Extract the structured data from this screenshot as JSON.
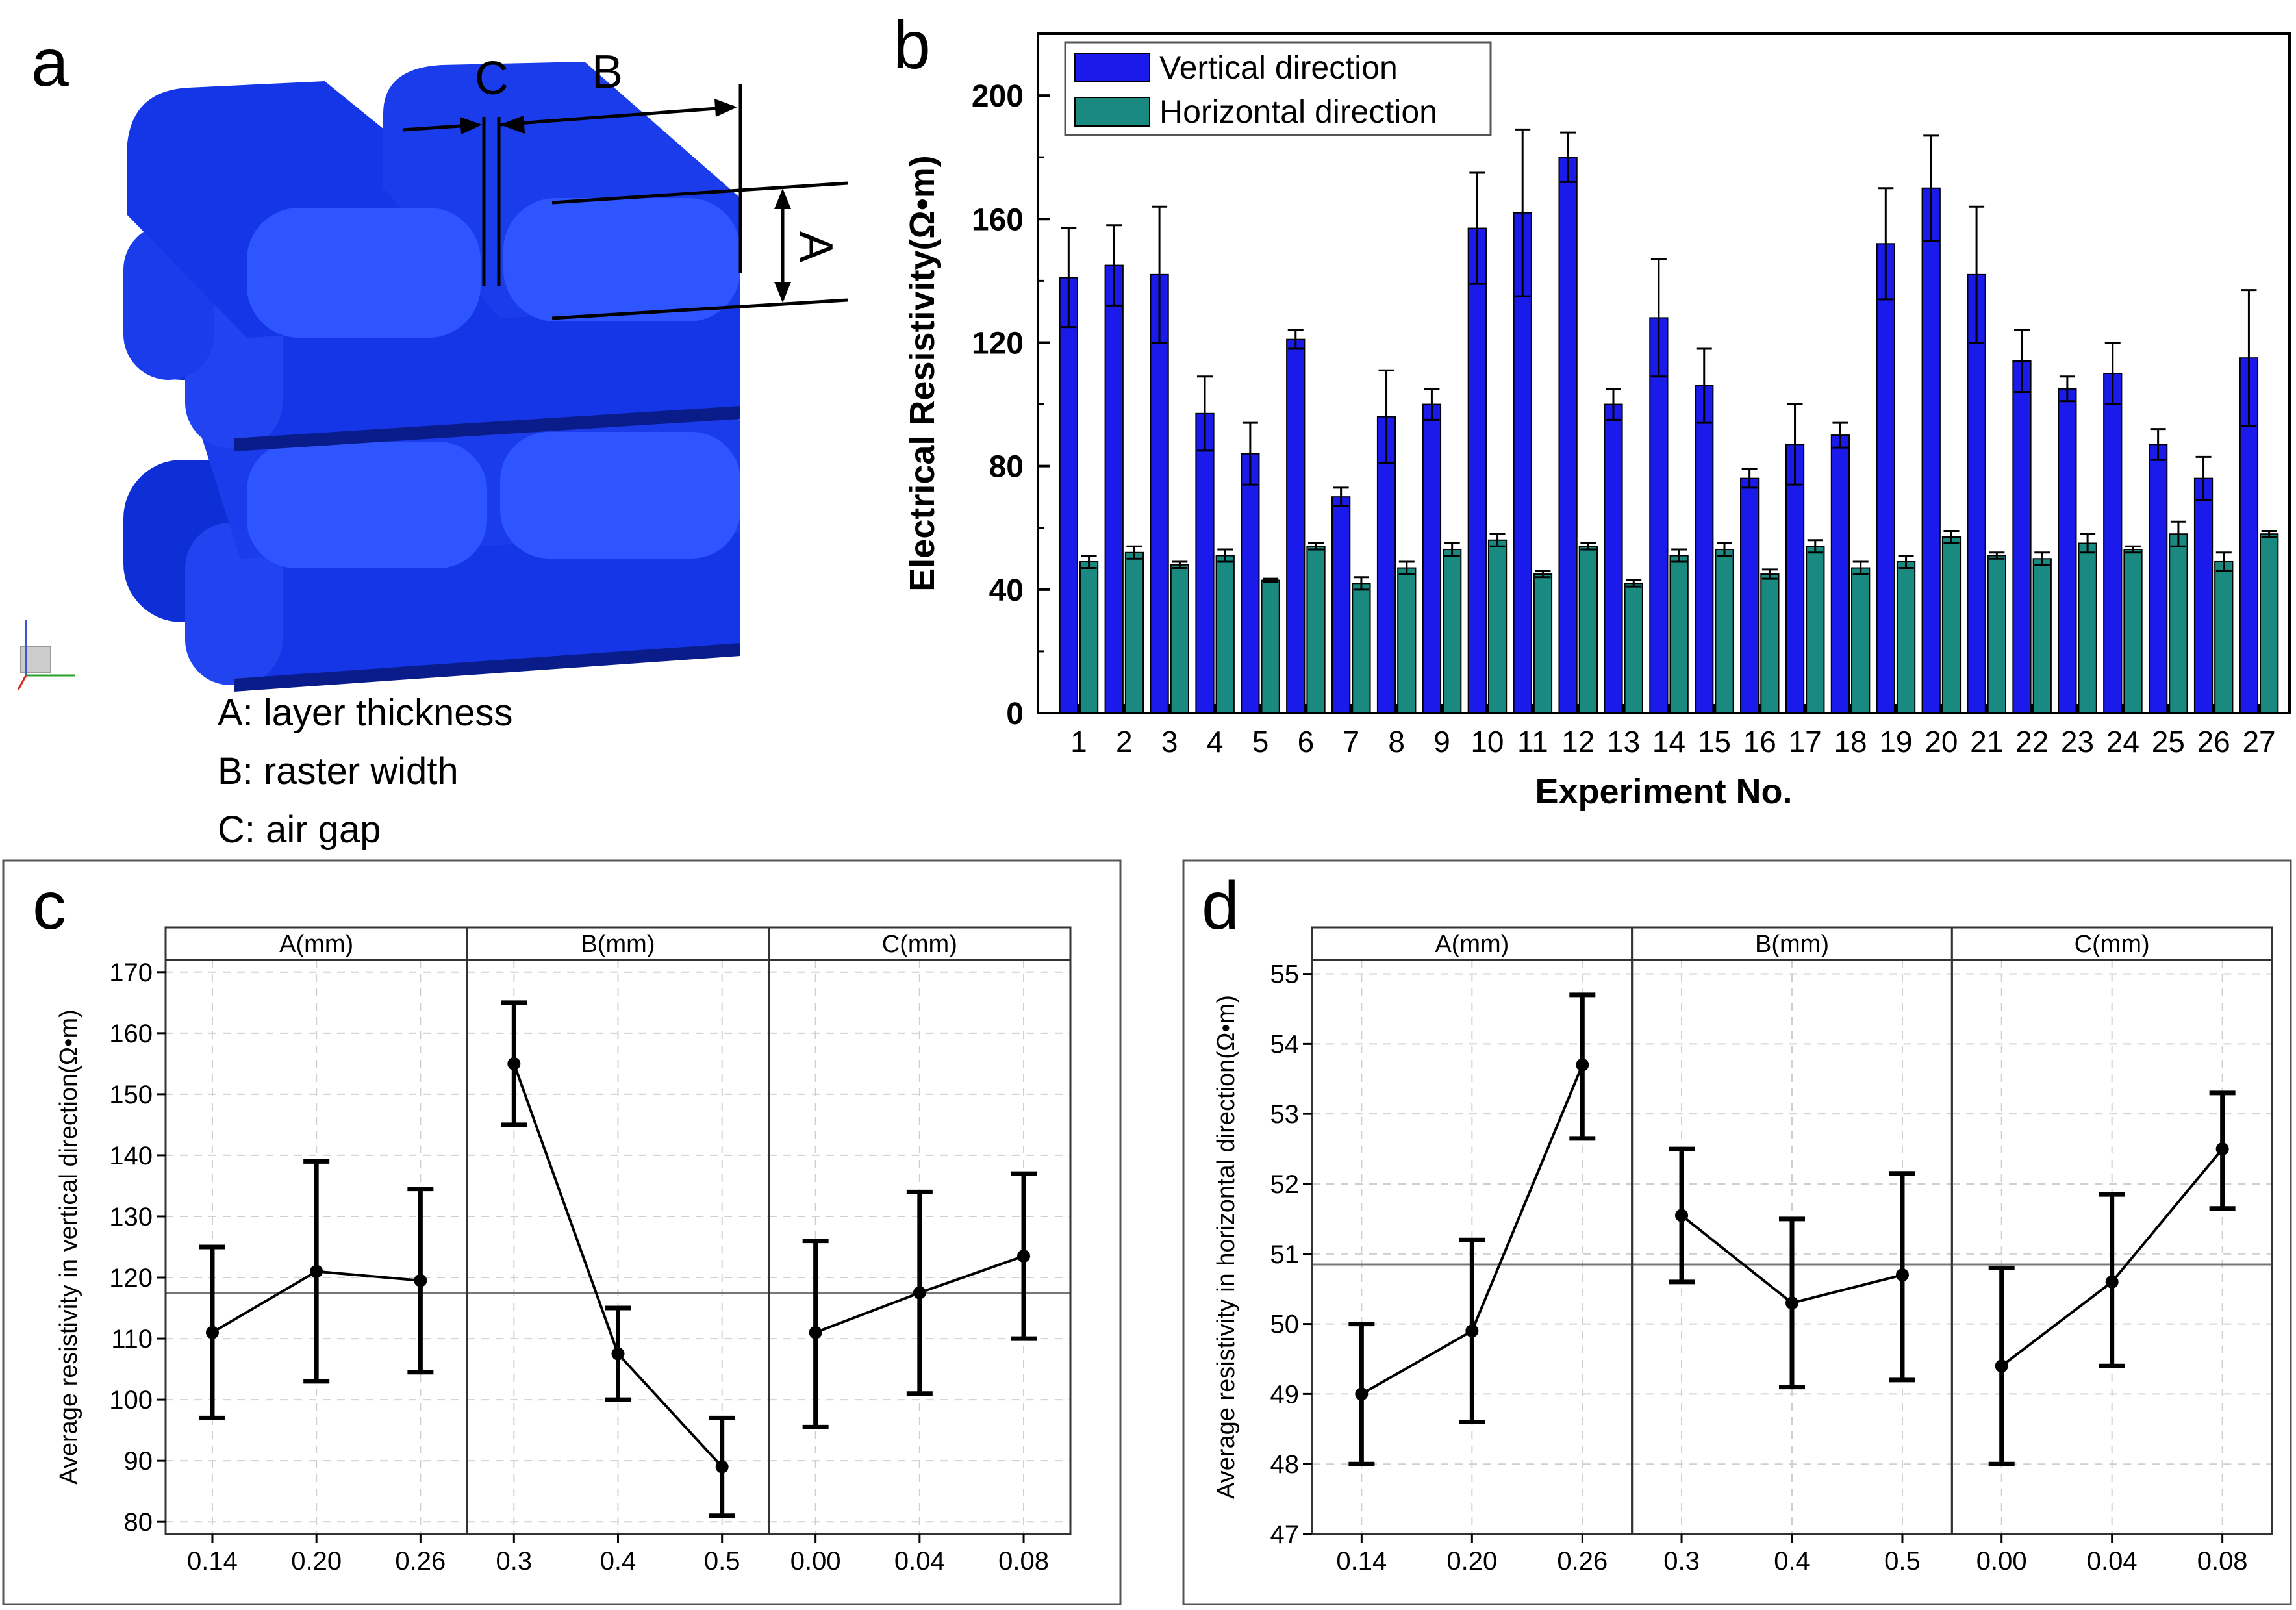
{
  "panel_a": {
    "panel_label": "a",
    "dim_labels": [
      "A",
      "B",
      "C"
    ],
    "legend": [
      "A: layer thickness",
      "B: raster width",
      "C: air gap"
    ],
    "colors": {
      "body": "#1436e6",
      "face": "#2e55ff",
      "top": "#3b61ff",
      "shadow": "#0a1c8a"
    }
  },
  "chart_data": [
    {
      "type": "bar",
      "panel_label": "b",
      "title": "",
      "xlabel": "Experiment No.",
      "ylabel": "Electrical Resistivity(Ω•m)",
      "ylim": [
        0,
        220
      ],
      "yticks": [
        0,
        40,
        80,
        120,
        160,
        200
      ],
      "legend_position": "top-left",
      "categories": [
        "1",
        "2",
        "3",
        "4",
        "5",
        "6",
        "7",
        "8",
        "9",
        "10",
        "11",
        "12",
        "13",
        "14",
        "15",
        "16",
        "17",
        "18",
        "19",
        "20",
        "21",
        "22",
        "23",
        "24",
        "25",
        "26",
        "27"
      ],
      "series": [
        {
          "name": "Vertical direction",
          "color": "#1a1aeb",
          "values": [
            141,
            145,
            142,
            97,
            84,
            121,
            70,
            96,
            100,
            157,
            162,
            180,
            100,
            128,
            106,
            76,
            87,
            90,
            152,
            170,
            142,
            114,
            105,
            110,
            87,
            76,
            115
          ],
          "errors": [
            16,
            13,
            22,
            12,
            10,
            3,
            3,
            15,
            5,
            18,
            27,
            8,
            5,
            19,
            12,
            3,
            13,
            4,
            18,
            17,
            22,
            10,
            4,
            10,
            5,
            7,
            22
          ]
        },
        {
          "name": "Horizontal direction",
          "color": "#1a8a80",
          "values": [
            49,
            52,
            48,
            51,
            43,
            54,
            42,
            47,
            53,
            56,
            45,
            54,
            42,
            51,
            53,
            45,
            54,
            47,
            49,
            57,
            51,
            50,
            55,
            53,
            58,
            49,
            58
          ],
          "errors": [
            2,
            2,
            1,
            2,
            0.5,
            1,
            2,
            2,
            2,
            2,
            1,
            1,
            1,
            2,
            2,
            1.5,
            2,
            2,
            2,
            2,
            1,
            2,
            3,
            1,
            4,
            3,
            1
          ]
        }
      ]
    },
    {
      "type": "line",
      "panel_label": "c",
      "ylabel": "Average resistivity in vertical direction(Ω•m)",
      "ylim": [
        78,
        172
      ],
      "yticks": [
        80,
        90,
        100,
        110,
        120,
        130,
        140,
        150,
        160,
        170
      ],
      "reference_line": 117.5,
      "facets": [
        {
          "title": "A(mm)",
          "x": [
            "0.14",
            "0.20",
            "0.26"
          ],
          "values": [
            111,
            121,
            119.5
          ],
          "lower": [
            97,
            103,
            104.5
          ],
          "upper": [
            125,
            139,
            134.5
          ]
        },
        {
          "title": "B(mm)",
          "x": [
            "0.3",
            "0.4",
            "0.5"
          ],
          "values": [
            155,
            107.5,
            89
          ],
          "lower": [
            145,
            100,
            81
          ],
          "upper": [
            165,
            115,
            97
          ]
        },
        {
          "title": "C(mm)",
          "x": [
            "0.00",
            "0.04",
            "0.08"
          ],
          "values": [
            111,
            117.5,
            123.5
          ],
          "lower": [
            95.5,
            101,
            110
          ],
          "upper": [
            126,
            134,
            137
          ]
        }
      ]
    },
    {
      "type": "line",
      "panel_label": "d",
      "ylabel": "Average resistivity in horizontal direction(Ω•m)",
      "ylim": [
        47,
        55.2
      ],
      "yticks": [
        47,
        48,
        49,
        50,
        51,
        52,
        53,
        54,
        55
      ],
      "reference_line": 50.85,
      "facets": [
        {
          "title": "A(mm)",
          "x": [
            "0.14",
            "0.20",
            "0.26"
          ],
          "values": [
            49,
            49.9,
            53.7
          ],
          "lower": [
            48,
            48.6,
            52.65
          ],
          "upper": [
            50,
            51.2,
            54.7
          ]
        },
        {
          "title": "B(mm)",
          "x": [
            "0.3",
            "0.4",
            "0.5"
          ],
          "values": [
            51.55,
            50.3,
            50.7
          ],
          "lower": [
            50.6,
            49.1,
            49.2
          ],
          "upper": [
            52.5,
            51.5,
            52.15
          ]
        },
        {
          "title": "C(mm)",
          "x": [
            "0.00",
            "0.04",
            "0.08"
          ],
          "values": [
            49.4,
            50.6,
            52.5
          ],
          "lower": [
            48,
            49.4,
            51.65
          ],
          "upper": [
            50.8,
            51.85,
            53.3
          ]
        }
      ]
    }
  ]
}
